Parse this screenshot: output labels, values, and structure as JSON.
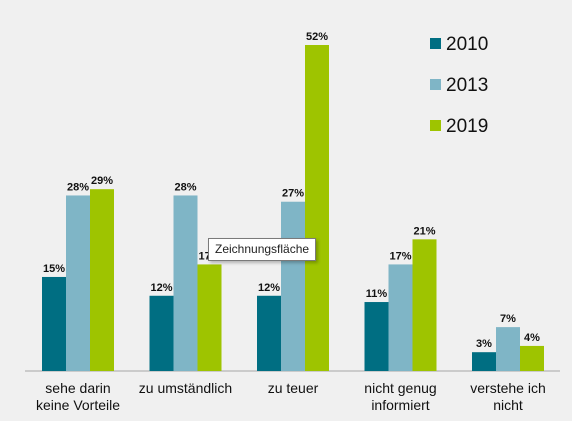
{
  "chart_data": {
    "type": "bar",
    "title": "",
    "xlabel": "",
    "ylabel": "",
    "categories": [
      [
        "sehe darin",
        "keine Vorteile"
      ],
      [
        "zu umständlich"
      ],
      [
        "zu teuer"
      ],
      [
        "nicht genug",
        "informiert"
      ],
      [
        "verstehe ich",
        "nicht"
      ]
    ],
    "series": [
      {
        "name": "2010",
        "color": "#006e82",
        "values": [
          15,
          12,
          12,
          11,
          3
        ],
        "labels": [
          "15%",
          "12%",
          "12%",
          "11%",
          "3%"
        ]
      },
      {
        "name": "2013",
        "color": "#7fb5c6",
        "values": [
          28,
          28,
          27,
          17,
          7
        ],
        "labels": [
          "28%",
          "28%",
          "27%",
          "17%",
          "7%"
        ]
      },
      {
        "name": "2019",
        "color": "#9ec400",
        "values": [
          29,
          17,
          52,
          21,
          4
        ],
        "labels": [
          "29%",
          "17%",
          "52%",
          "21%",
          "4%"
        ]
      }
    ],
    "ylim": [
      0,
      52
    ],
    "grid": false,
    "legend": "top-right"
  },
  "tooltip": {
    "text": "Zeichnungsfläche"
  }
}
